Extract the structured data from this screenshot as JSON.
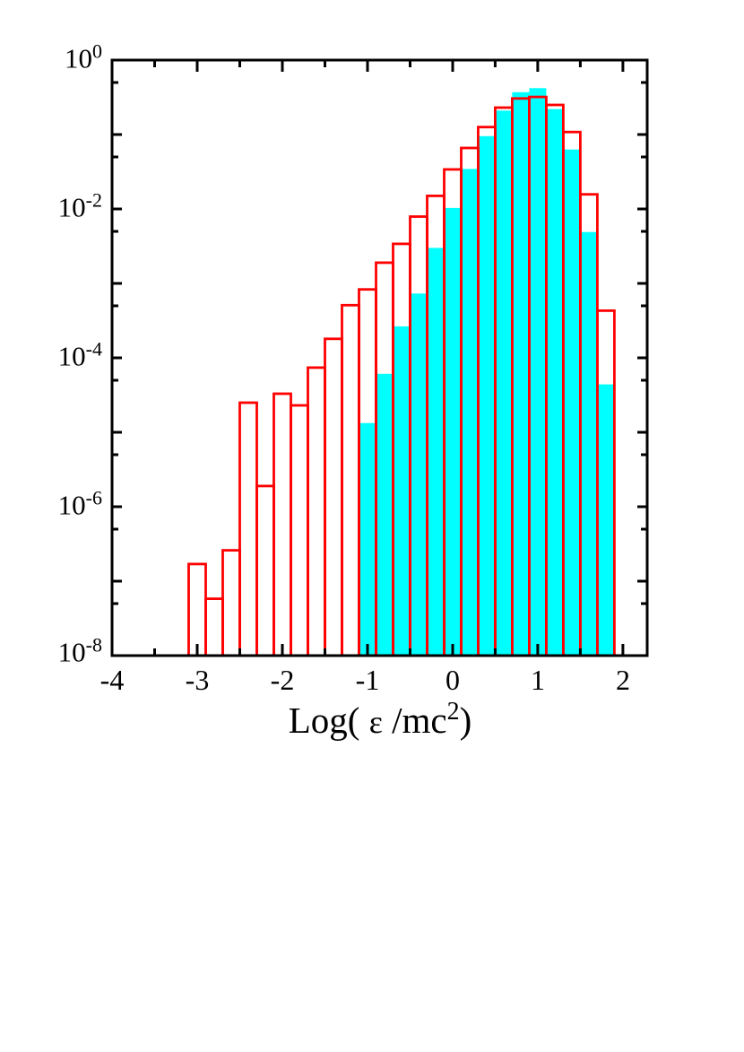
{
  "figure": {
    "background": "#ffffff",
    "frame_color": "#000000"
  },
  "axes": {
    "y": {
      "base": "10",
      "major": [
        {
          "exp": "0"
        },
        {
          "exp": "-2"
        },
        {
          "exp": "-4"
        },
        {
          "exp": "-6"
        },
        {
          "exp": "-8"
        }
      ]
    },
    "x": {
      "labels": [
        "-4",
        "-3",
        "-2",
        "-1",
        "0",
        "1",
        "2"
      ]
    },
    "title": {
      "pre": "Log( ",
      "epsilon": "ε",
      "mid": " /mc",
      "sup": "2",
      "post": ")"
    }
  },
  "chart_data": {
    "type": "bar",
    "subtype": "histogram",
    "title": "",
    "xlabel": "Log( ε /mc^2 )",
    "ylabel": "",
    "xlim": [
      -4,
      2.285
    ],
    "ylim": [
      1e-08,
      1
    ],
    "yscale": "log",
    "grid": false,
    "legend": "none",
    "x_major_ticks": [
      -4,
      -3,
      -2,
      -1,
      0,
      1,
      2
    ],
    "x_minor_ticks": [
      -3.5,
      -2.5,
      -1.5,
      -0.5,
      0.5,
      1.5
    ],
    "y_labeled_exponents": [
      0,
      -2,
      -4,
      -6,
      -8
    ],
    "y_decade_tick_exponents": [
      0,
      -1,
      -2,
      -3,
      -4,
      -5,
      -6,
      -7,
      -8
    ],
    "y_half_decade_ticks_at": "5e-1 through 5e-8",
    "bin_width": 0.2,
    "series": [
      {
        "name": "red-open-histogram",
        "style": "outline",
        "color": "#ff0000",
        "bin_start": -3.1,
        "values": [
          1.7e-07,
          5.8e-08,
          2.6e-07,
          2.5e-05,
          1.9e-06,
          3.3e-05,
          2.3e-05,
          7.4e-05,
          0.00018,
          0.00051,
          0.00083,
          0.0019,
          0.0034,
          0.0079,
          0.015,
          0.034,
          0.066,
          0.126,
          0.23,
          0.305,
          0.32,
          0.25,
          0.108,
          0.0157,
          0.00043
        ]
      },
      {
        "name": "cyan-filled-histogram",
        "style": "filled",
        "color": "#00ffff",
        "bin_start": -1.1,
        "values": [
          1.33e-05,
          6.1e-05,
          0.000265,
          0.00073,
          0.003,
          0.0103,
          0.0345,
          0.095,
          0.21,
          0.37,
          0.42,
          0.22,
          0.063,
          0.0049,
          4.4e-05
        ]
      }
    ]
  }
}
